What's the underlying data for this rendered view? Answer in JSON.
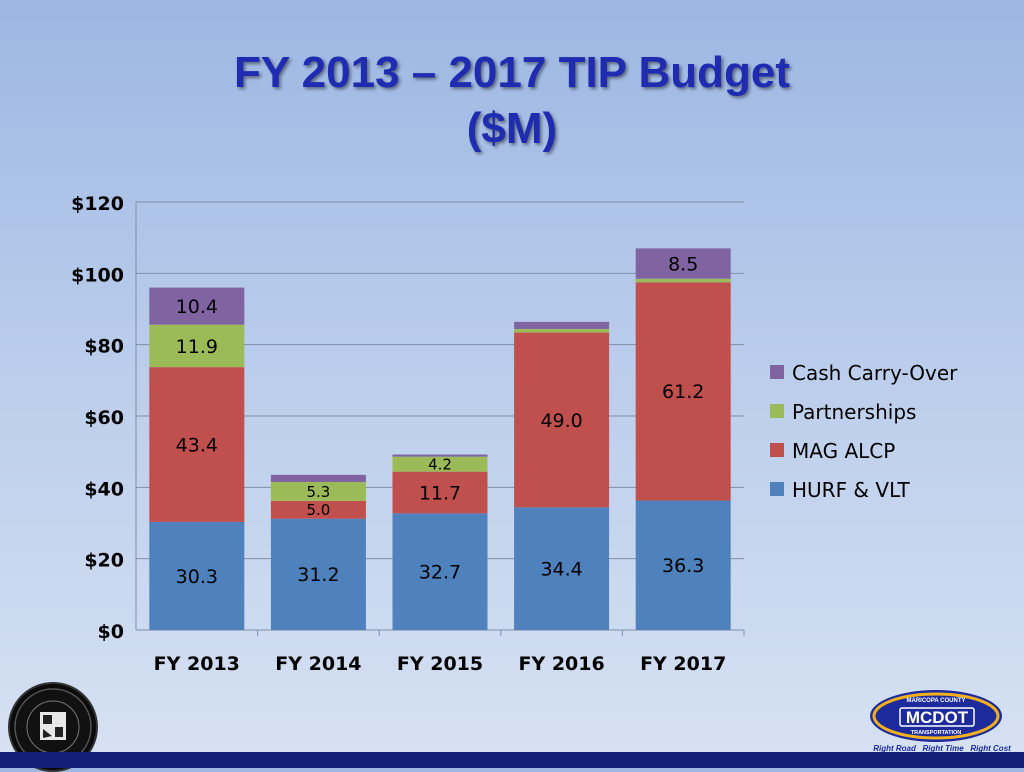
{
  "slide": {
    "title_line1": "FY 2013 – 2017 TIP Budget",
    "title_line2": "($M)"
  },
  "logo": {
    "top_text": "MARICOPA COUNTY",
    "main_text": "MCDOT",
    "sub_text": "TRANSPORTATION",
    "tagline": "Right Road   Right Time   Right Cost"
  },
  "colors": {
    "HURF & VLT": "#4f81bd",
    "MAG ALCP": "#c0504d",
    "Partnerships": "#9bbb59",
    "Cash Carry-Over": "#8064a2",
    "background": "#b9cceb",
    "title": "#1f2bb0"
  },
  "chart_data": {
    "type": "bar",
    "stacked": true,
    "categories": [
      "FY 2013",
      "FY 2014",
      "FY 2015",
      "FY 2016",
      "FY 2017"
    ],
    "series": [
      {
        "name": "HURF & VLT",
        "values": [
          30.3,
          31.2,
          32.7,
          34.4,
          36.3
        ],
        "labels": [
          "30.3",
          "31.2",
          "32.7",
          "34.4",
          "36.3"
        ]
      },
      {
        "name": "MAG ALCP",
        "values": [
          43.4,
          5.0,
          11.7,
          49.0,
          61.2
        ],
        "labels": [
          "43.4",
          "5.0",
          "11.7",
          "49.0",
          "61.2"
        ]
      },
      {
        "name": "Partnerships",
        "values": [
          11.9,
          5.3,
          4.2,
          1.0,
          1.0
        ],
        "labels": [
          "11.9",
          "5.3",
          "4.2",
          "",
          ""
        ]
      },
      {
        "name": "Cash Carry-Over",
        "values": [
          10.4,
          2.0,
          0.6,
          2.0,
          8.5
        ],
        "labels": [
          "10.4",
          "",
          "",
          "",
          "8.5"
        ]
      }
    ],
    "ylim": [
      0,
      120
    ],
    "yticks": [
      0,
      20,
      40,
      60,
      80,
      100,
      120
    ],
    "ytick_labels": [
      "$0",
      "$20",
      "$40",
      "$60",
      "$80",
      "$100",
      "$120"
    ],
    "grid": true,
    "legend": "right",
    "legend_order": [
      "Cash Carry-Over",
      "Partnerships",
      "MAG ALCP",
      "HURF & VLT"
    ]
  }
}
